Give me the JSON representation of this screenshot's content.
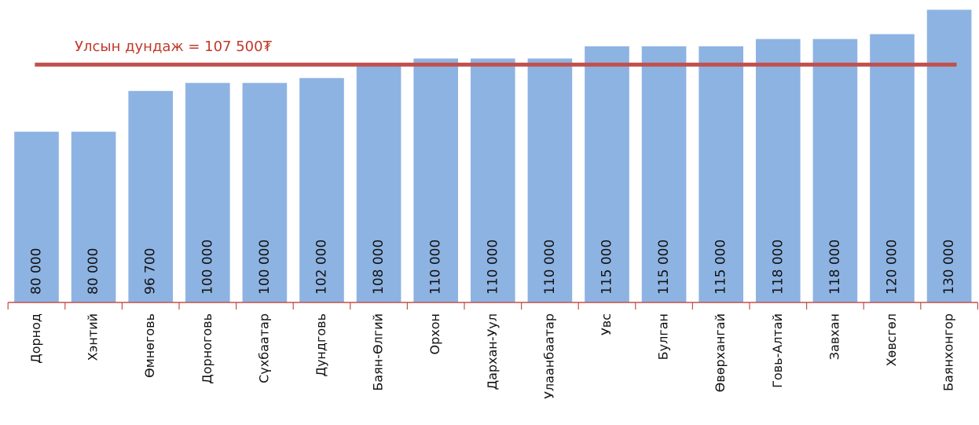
{
  "chart_data": {
    "type": "bar",
    "categories": [
      "Дорнод",
      "Хэнтий",
      "Өмнөговь",
      "Дорноговь",
      "Сүхбаатар",
      "Дундговь",
      "Баян-Өлгий",
      "Орхон",
      "Дархан-Уул",
      "Улаанбаатар",
      "Увс",
      "Булган",
      "Өвөрхангай",
      "Говь-Алтай",
      "Завхан",
      "Хөвсгөл",
      "Баянхонгор"
    ],
    "values": [
      80000,
      80000,
      96700,
      100000,
      100000,
      102000,
      108000,
      110000,
      110000,
      110000,
      115000,
      115000,
      115000,
      118000,
      118000,
      120000,
      130000
    ],
    "value_labels": [
      "80 000",
      "80 000",
      "96 700",
      "100 000",
      "100 000",
      "102 000",
      "108 000",
      "110 000",
      "110 000",
      "110 000",
      "115 000",
      "115 000",
      "115 000",
      "118 000",
      "118 000",
      "120 000",
      "130 000"
    ],
    "color": "#8db3e2",
    "ylim": [
      10000,
      134000
    ],
    "average": {
      "value": 107500,
      "label": "Улсын дундаж = 107 500₮",
      "color": "#c0504d"
    }
  }
}
